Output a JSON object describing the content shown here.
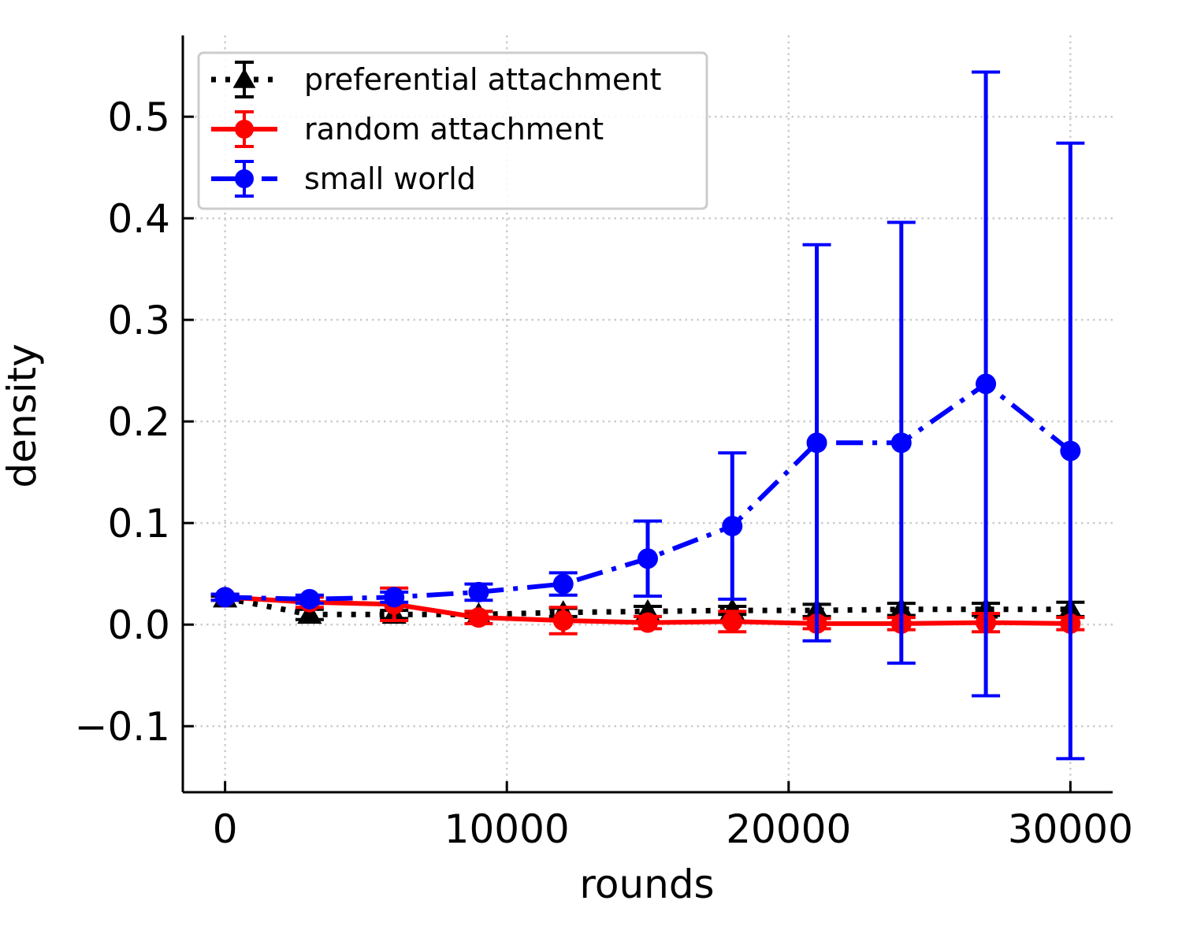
{
  "chart_data": {
    "type": "line",
    "xlabel": "rounds",
    "ylabel": "density",
    "xlim": [
      -1500,
      31500
    ],
    "ylim": [
      -0.165,
      0.58
    ],
    "x_ticks": [
      0,
      10000,
      20000,
      30000
    ],
    "x_tick_labels": [
      "0",
      "10000",
      "20000",
      "30000"
    ],
    "y_ticks": [
      -0.1,
      0.0,
      0.1,
      0.2,
      0.3,
      0.4,
      0.5
    ],
    "y_tick_labels": [
      "−0.1",
      "0.0",
      "0.1",
      "0.2",
      "0.3",
      "0.4",
      "0.5"
    ],
    "grid": true,
    "legend_position": "top-left",
    "x": [
      0,
      3000,
      6000,
      9000,
      12000,
      15000,
      18000,
      21000,
      24000,
      27000,
      30000
    ],
    "series": [
      {
        "name": "preferential attachment",
        "color": "#000000",
        "linestyle": "dotted",
        "marker": "triangle",
        "values": [
          0.026,
          0.01,
          0.01,
          0.01,
          0.012,
          0.013,
          0.014,
          0.014,
          0.015,
          0.015,
          0.015
        ],
        "errors": [
          0.002,
          0.005,
          0.004,
          0.003,
          0.004,
          0.005,
          0.004,
          0.006,
          0.006,
          0.006,
          0.007
        ]
      },
      {
        "name": "random attachment",
        "color": "#ff0000",
        "linestyle": "solid",
        "marker": "circle",
        "values": [
          0.027,
          0.022,
          0.02,
          0.007,
          0.004,
          0.002,
          0.003,
          0.001,
          0.001,
          0.002,
          0.001
        ],
        "errors": [
          0.003,
          0.005,
          0.016,
          0.006,
          0.013,
          0.006,
          0.01,
          0.005,
          0.006,
          0.009,
          0.006
        ]
      },
      {
        "name": "small world",
        "color": "#0000ff",
        "linestyle": "dashdot",
        "marker": "circle",
        "values": [
          0.027,
          0.025,
          0.027,
          0.032,
          0.04,
          0.065,
          0.097,
          0.179,
          0.179,
          0.237,
          0.171
        ],
        "errors": [
          0.003,
          0.004,
          0.005,
          0.008,
          0.011,
          0.037,
          0.072,
          0.195,
          0.217,
          0.307,
          0.303
        ]
      }
    ]
  }
}
